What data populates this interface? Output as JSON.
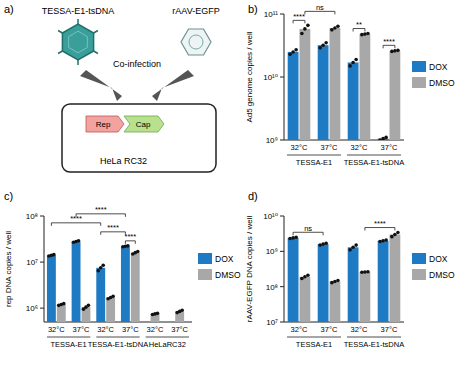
{
  "diagram": {
    "title": "a)",
    "virus_label": "TESSA-E1-tsDNA",
    "vector_label": "rAAV-EGFP",
    "arrow_label": "Co-infection",
    "genes": [
      "Rep",
      "Cap"
    ],
    "cell_label": "HeLa RC32"
  },
  "chart_data": [
    {
      "type": "bar",
      "title": "b)",
      "y_label": "Ad5 genome copies / well",
      "log": "y",
      "legend": "right",
      "ylim": [
        1000000000.0,
        100000000000.0
      ],
      "yticks": [
        {
          "value": 1000000000.0,
          "label": "10⁹"
        },
        {
          "value": 10000000000.0,
          "label": "10¹⁰"
        },
        {
          "value": 100000000000.0,
          "label": "10¹¹"
        }
      ],
      "categories": [
        "32°C",
        "37°C",
        "32°C",
        "37°C"
      ],
      "groups": [
        {
          "label": "TESSA-E1",
          "categories": [
            0,
            1
          ]
        },
        {
          "label": "TESSA-E1-tsDNA",
          "categories": [
            2,
            3
          ]
        }
      ],
      "series": [
        {
          "name": "DOX",
          "color": "#1f7ac4",
          "values": [
            25000000000.0,
            32000000000.0,
            17000000000.0,
            1050000000.0
          ],
          "replicates": [
            [
              23000000000.0,
              25000000000.0,
              27000000000.0
            ],
            [
              29000000000.0,
              32000000000.0,
              35000000000.0
            ],
            [
              15000000000.0,
              17000000000.0,
              19000000000.0
            ],
            [
              1000000000.0,
              1050000000.0,
              1100000000.0
            ]
          ]
        },
        {
          "name": "DMSO",
          "color": "#a8a8a8",
          "values": [
            58000000000.0,
            60000000000.0,
            48000000000.0,
            26000000000.0
          ],
          "replicates": [
            [
              49000000000.0,
              58000000000.0,
              66000000000.0
            ],
            [
              56000000000.0,
              60000000000.0,
              64000000000.0
            ],
            [
              47000000000.0,
              48000000000.0,
              49000000000.0
            ],
            [
              25500000000.0,
              26000000000.0,
              26500000000.0
            ]
          ]
        }
      ],
      "annotations": [
        {
          "text": "****",
          "from": [
            0,
            0
          ],
          "to": [
            0,
            1
          ]
        },
        {
          "text": "ns",
          "from": [
            0,
            1
          ],
          "to": [
            1,
            1
          ]
        },
        {
          "text": "**",
          "from": [
            2,
            0
          ],
          "to": [
            2,
            1
          ]
        },
        {
          "text": "****",
          "from": [
            3,
            0
          ],
          "to": [
            3,
            1
          ]
        }
      ]
    },
    {
      "type": "bar",
      "title": "c)",
      "y_label": "rep DNA copies / well",
      "log": "y",
      "legend": "right",
      "ylim": [
        500000.0,
        100000000.0
      ],
      "yticks": [
        {
          "value": 1000000.0,
          "label": "10⁶"
        },
        {
          "value": 10000000.0,
          "label": "10⁷"
        },
        {
          "value": 100000000.0,
          "label": "10⁸"
        }
      ],
      "categories": [
        "32°C",
        "37°C",
        "32°C",
        "37°C",
        "32°C",
        "37°C"
      ],
      "groups": [
        {
          "label": "TESSA-E1",
          "categories": [
            0,
            1
          ]
        },
        {
          "label": "TESSA-E1-tsDNA",
          "categories": [
            2,
            3
          ]
        },
        {
          "label": "HeLaRC32",
          "categories": [
            4,
            5
          ]
        }
      ],
      "series": [
        {
          "name": "DOX",
          "color": "#1f7ac4",
          "values": [
            14000000.0,
            28000000.0,
            7500000.0,
            22000000.0,
            null,
            null
          ],
          "replicates": [
            [
              13500000.0,
              14000000.0,
              14500000.0
            ],
            [
              27000000.0,
              28000000.0,
              29000000.0
            ],
            [
              6500000.0,
              7500000.0,
              8500000.0
            ],
            [
              21500000.0,
              22000000.0,
              22500000.0
            ],
            null,
            null
          ]
        },
        {
          "name": "DMSO",
          "color": "#a8a8a8",
          "values": [
            1200000.0,
            1050000.0,
            1700000.0,
            16000000.0,
            750000.0,
            850000.0
          ],
          "replicates": [
            [
              1150000.0,
              1200000.0,
              1250000.0
            ],
            [
              950000.0,
              1050000.0,
              1150000.0
            ],
            [
              1600000.0,
              1700000.0,
              1800000.0
            ],
            [
              15000000.0,
              16000000.0,
              17000000.0
            ],
            [
              730000.0,
              750000.0,
              770000.0
            ],
            [
              800000.0,
              850000.0,
              900000.0
            ]
          ]
        }
      ],
      "annotations": [
        {
          "text": "****",
          "from": [
            0,
            0
          ],
          "to": [
            2,
            0
          ]
        },
        {
          "text": "****",
          "from": [
            1,
            0
          ],
          "to": [
            3,
            0
          ]
        },
        {
          "text": "****",
          "from": [
            2,
            0
          ],
          "to": [
            3,
            0
          ]
        },
        {
          "text": "****",
          "from": [
            3,
            0
          ],
          "to": [
            3,
            1
          ]
        }
      ]
    },
    {
      "type": "bar",
      "title": "d)",
      "y_label": "rAAV-EGFP DNA copies / well",
      "log": "y",
      "legend": "right",
      "ylim": [
        10000000.0,
        10000000000.0
      ],
      "yticks": [
        {
          "value": 10000000.0,
          "label": "10⁷"
        },
        {
          "value": 100000000.0,
          "label": "10⁸"
        },
        {
          "value": 1000000000.0,
          "label": "10⁹"
        },
        {
          "value": 10000000000.0,
          "label": "10¹⁰"
        }
      ],
      "categories": [
        "32°C",
        "37°C",
        "32°C",
        "37°C"
      ],
      "groups": [
        {
          "label": "TESSA-E1",
          "categories": [
            0,
            1
          ]
        },
        {
          "label": "TESSA-E1-tsDNA",
          "categories": [
            2,
            3
          ]
        }
      ],
      "series": [
        {
          "name": "DOX",
          "color": "#1f7ac4",
          "values": [
            2400000000.0,
            1600000000.0,
            1300000000.0,
            2000000000.0
          ],
          "replicates": [
            [
              2300000000.0,
              2400000000.0,
              2500000000.0
            ],
            [
              1500000000.0,
              1600000000.0,
              1700000000.0
            ],
            [
              1100000000.0,
              1300000000.0,
              1500000000.0
            ],
            [
              1900000000.0,
              2000000000.0,
              2100000000.0
            ]
          ]
        },
        {
          "name": "DMSO",
          "color": "#a8a8a8",
          "values": [
            190000000.0,
            140000000.0,
            260000000.0,
            3000000000.0
          ],
          "replicates": [
            [
              170000000.0,
              190000000.0,
              210000000.0
            ],
            [
              130000000.0,
              140000000.0,
              150000000.0
            ],
            [
              255000000.0,
              260000000.0,
              265000000.0
            ],
            [
              2600000000.0,
              3000000000.0,
              3400000000.0
            ]
          ]
        }
      ],
      "annotations": [
        {
          "text": "ns",
          "from": [
            0,
            0
          ],
          "to": [
            1,
            0
          ]
        },
        {
          "text": "****",
          "from": [
            2,
            1
          ],
          "to": [
            3,
            1
          ]
        }
      ]
    }
  ]
}
